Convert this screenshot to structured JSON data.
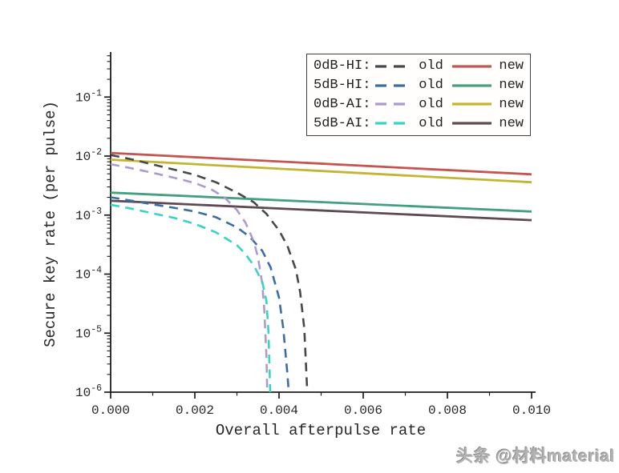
{
  "watermark": {
    "text": "头条 @材料material"
  },
  "legend": {
    "rows": [
      {
        "label": "0dB-HI:",
        "old_label": "old",
        "new_label": "new",
        "old_color": "#46494c",
        "new_color": "#c65450"
      },
      {
        "label": "5dB-HI:",
        "old_label": "old",
        "new_label": "new",
        "old_color": "#3a6da6",
        "new_color": "#45a080"
      },
      {
        "label": "0dB-AI:",
        "old_label": "old",
        "new_label": "new",
        "old_color": "#ad9bcb",
        "new_color": "#c4b433"
      },
      {
        "label": "5dB-AI:",
        "old_label": "old",
        "new_label": "new",
        "old_color": "#39d3c3",
        "new_color": "#5e4b51"
      }
    ]
  },
  "chart_data": {
    "type": "line",
    "title": "",
    "xlabel": "Overall afterpulse rate",
    "ylabel": "Secure key rate (per pulse)",
    "xscale": "linear",
    "yscale": "log",
    "xlim": [
      0,
      0.0101
    ],
    "ylim": [
      1e-06,
      0.56
    ],
    "grid": false,
    "legend_position": "top-right",
    "xticks_major": [
      0,
      0.002,
      0.004,
      0.006,
      0.008,
      0.01
    ],
    "xtick_labels": [
      "0.000",
      "0.002",
      "0.004",
      "0.006",
      "0.008",
      "0.010"
    ],
    "xticks_minor": [
      0.001,
      0.003,
      0.005,
      0.007,
      0.009
    ],
    "ytick_exponents": [
      -1,
      -2,
      -3,
      -4,
      -5,
      -6
    ],
    "series": [
      {
        "name": "0dB-HI old",
        "group": "0dB-HI",
        "variant": "old",
        "style": "dashed",
        "color": "#46494c",
        "points": [
          [
            0,
            0.0104
          ],
          [
            0.0005,
            0.0088
          ],
          [
            0.001,
            0.0072
          ],
          [
            0.0015,
            0.0059
          ],
          [
            0.002,
            0.0048
          ],
          [
            0.0025,
            0.0036
          ],
          [
            0.003,
            0.0024
          ],
          [
            0.0034,
            0.00165
          ],
          [
            0.0037,
            0.00105
          ],
          [
            0.004,
            0.00055
          ],
          [
            0.0042,
            0.0003
          ],
          [
            0.0044,
            0.00012
          ],
          [
            0.0045,
            5e-05
          ],
          [
            0.0046,
            1.2e-05
          ],
          [
            0.00467,
            1e-06
          ]
        ]
      },
      {
        "name": "0dB-HI new",
        "group": "0dB-HI",
        "variant": "new",
        "style": "solid",
        "color": "#c65450",
        "points": [
          [
            0,
            0.0113
          ],
          [
            0.01,
            0.0049
          ]
        ]
      },
      {
        "name": "5dB-HI old",
        "group": "5dB-HI",
        "variant": "old",
        "style": "dashed",
        "color": "#3a6da6",
        "points": [
          [
            0,
            0.002
          ],
          [
            0.0005,
            0.00175
          ],
          [
            0.001,
            0.00152
          ],
          [
            0.0015,
            0.00133
          ],
          [
            0.002,
            0.00115
          ],
          [
            0.0025,
            0.00092
          ],
          [
            0.003,
            0.00062
          ],
          [
            0.0033,
            0.00043
          ],
          [
            0.0036,
            0.00025
          ],
          [
            0.0038,
            0.00013
          ],
          [
            0.004,
            4e-05
          ],
          [
            0.0041,
            1.2e-05
          ],
          [
            0.0042,
            2e-06
          ],
          [
            0.00423,
            1e-06
          ]
        ]
      },
      {
        "name": "5dB-HI new",
        "group": "5dB-HI",
        "variant": "new",
        "style": "solid",
        "color": "#45a080",
        "points": [
          [
            0,
            0.0024
          ],
          [
            0.01,
            0.00115
          ]
        ]
      },
      {
        "name": "0dB-AI old",
        "group": "0dB-AI",
        "variant": "old",
        "style": "dashed",
        "color": "#ad9bcb",
        "points": [
          [
            0,
            0.0073
          ],
          [
            0.0005,
            0.0062
          ],
          [
            0.001,
            0.0052
          ],
          [
            0.0015,
            0.0043
          ],
          [
            0.002,
            0.0035
          ],
          [
            0.0024,
            0.0027
          ],
          [
            0.0027,
            0.002
          ],
          [
            0.003,
            0.00122
          ],
          [
            0.0032,
            0.00075
          ],
          [
            0.0034,
            0.00036
          ],
          [
            0.0035,
            0.00019
          ],
          [
            0.0036,
            7e-05
          ],
          [
            0.00365,
            2.5e-05
          ],
          [
            0.0037,
            4e-06
          ],
          [
            0.00372,
            1e-06
          ]
        ]
      },
      {
        "name": "0dB-AI new",
        "group": "0dB-AI",
        "variant": "new",
        "style": "solid",
        "color": "#c4b433",
        "points": [
          [
            0,
            0.0087
          ],
          [
            0.01,
            0.0036
          ]
        ]
      },
      {
        "name": "5dB-AI old",
        "group": "5dB-AI",
        "variant": "old",
        "style": "dashed",
        "color": "#39d3c3",
        "points": [
          [
            0,
            0.0015
          ],
          [
            0.0005,
            0.00128
          ],
          [
            0.001,
            0.00107
          ],
          [
            0.0015,
            0.0009
          ],
          [
            0.002,
            0.00071
          ],
          [
            0.0025,
            0.00051
          ],
          [
            0.003,
            0.00031
          ],
          [
            0.0032,
            0.00022
          ],
          [
            0.0034,
            0.00014
          ],
          [
            0.0036,
            7.5e-05
          ],
          [
            0.0037,
            3.5e-05
          ],
          [
            0.00375,
            1e-05
          ],
          [
            0.00379,
            1e-06
          ]
        ]
      },
      {
        "name": "5dB-AI new",
        "group": "5dB-AI",
        "variant": "new",
        "style": "solid",
        "color": "#5e4b51",
        "points": [
          [
            0,
            0.00175
          ],
          [
            0.01,
            0.00082
          ]
        ]
      }
    ]
  }
}
